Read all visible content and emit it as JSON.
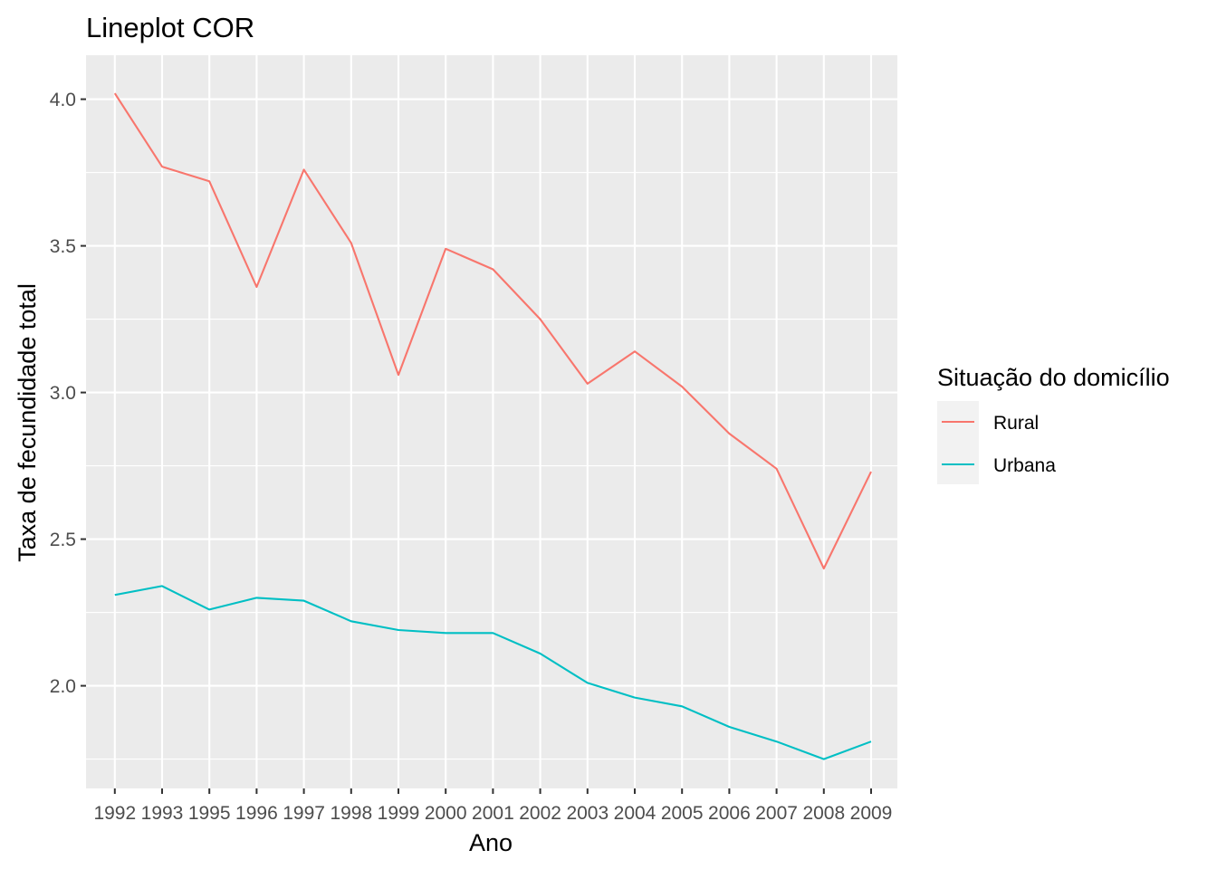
{
  "chart_data": {
    "type": "line",
    "title": "Lineplot COR",
    "xlabel": "Ano",
    "ylabel": "Taxa de fecundidade total",
    "x": [
      "1992",
      "1993",
      "1995",
      "1996",
      "1997",
      "1998",
      "1999",
      "2000",
      "2001",
      "2002",
      "2003",
      "2004",
      "2005",
      "2006",
      "2007",
      "2008",
      "2009"
    ],
    "y_ticks": [
      "2.0",
      "2.5",
      "3.0",
      "3.5",
      "4.0"
    ],
    "ylim": [
      1.65,
      4.15
    ],
    "grid": true,
    "legend": {
      "title": "Situação do domicílio",
      "position": "right"
    },
    "series": [
      {
        "name": "Rural",
        "color": "#F8766D",
        "values": [
          4.02,
          3.77,
          3.72,
          3.36,
          3.76,
          3.51,
          3.06,
          3.49,
          3.42,
          3.25,
          3.03,
          3.14,
          3.02,
          2.86,
          2.74,
          2.4,
          2.73
        ]
      },
      {
        "name": "Urbana",
        "color": "#00BFC4",
        "values": [
          2.31,
          2.34,
          2.26,
          2.3,
          2.29,
          2.22,
          2.19,
          2.18,
          2.18,
          2.11,
          2.01,
          1.96,
          1.93,
          1.86,
          1.81,
          1.75,
          1.81
        ]
      }
    ]
  }
}
